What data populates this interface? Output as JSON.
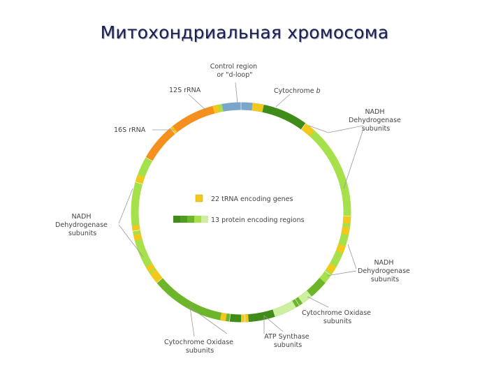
{
  "title": "Митохондриальная хромосома",
  "labels": {
    "control_region": [
      "Control region",
      "or \"d-loop\""
    ],
    "rrna_12s": "12S rRNA",
    "cytochrome_b": [
      "Cytochrome ",
      "b"
    ],
    "nadh_top_right": [
      "NADH",
      "Dehydrogenase",
      "subunits"
    ],
    "rrna_16s": "16S rRNA",
    "nadh_left": [
      "NADH",
      "Dehydrogenase",
      "subunits"
    ],
    "nadh_bottom_right": [
      "NADH",
      "Dehydrogenase",
      "subunits"
    ],
    "cytochrome_oxidase_right": [
      "Cytochrome Oxidase",
      "subunits"
    ],
    "atp_synthase": [
      "ATP Synthase",
      "subunits"
    ],
    "cytochrome_oxidase_bottom": [
      "Cytochrome Oxidase",
      "subunits"
    ]
  },
  "legend": {
    "trna": "22 tRNA encoding genes",
    "protein": "13 protein encoding regions"
  },
  "colors": {
    "control_region": "#7ba6c9",
    "rrna": "#f5901e",
    "trna": "#f2c81c",
    "protein_dark": "#3f8c1a",
    "protein_mid": "#6db52a",
    "protein_light": "#a6e04a",
    "protein_pale": "#cdf0a0"
  }
}
